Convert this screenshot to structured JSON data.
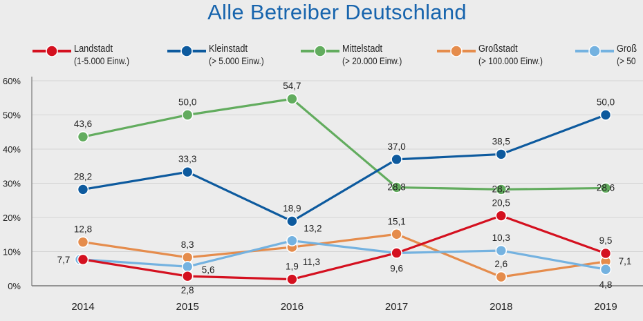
{
  "chart_data": {
    "type": "line",
    "title": "Alle Betreiber Deutschland",
    "categories": [
      "2014",
      "2015",
      "2016",
      "2017",
      "2018",
      "2019"
    ],
    "ylim": [
      0,
      60
    ],
    "yticks": [
      "0%",
      "10%",
      "20%",
      "30%",
      "40%",
      "50%",
      "60%"
    ],
    "grid": true,
    "legend_position": "top",
    "series": [
      {
        "name": "Landstadt",
        "sub": "(1-5.000 Einw.)",
        "color": "#d4101f",
        "values": [
          7.7,
          2.8,
          1.9,
          9.6,
          20.5,
          9.5
        ],
        "labels": [
          "",
          "2,8",
          "1,9",
          "",
          "20,5",
          "9,5"
        ]
      },
      {
        "name": "Kleinstadt",
        "sub": "(> 5.000 Einw.)",
        "color": "#0d5a9e",
        "values": [
          28.2,
          33.3,
          18.9,
          37.0,
          38.5,
          50.0
        ],
        "labels": [
          "28,2",
          "33,3",
          "18,9",
          "37,0",
          "38,5",
          "50,0"
        ]
      },
      {
        "name": "Mittelstadt",
        "sub": "(> 20.000 Einw.)",
        "color": "#62ac5e",
        "values": [
          43.6,
          50.0,
          54.7,
          28.8,
          28.2,
          28.6
        ],
        "labels": [
          "43,6",
          "50,0",
          "54,7",
          "28,8",
          "28,2",
          "28,6"
        ]
      },
      {
        "name": "Großstadt",
        "sub": "(> 100.000 Einw.)",
        "color": "#e58c4c",
        "values": [
          12.8,
          8.3,
          11.3,
          15.1,
          2.6,
          7.1
        ],
        "labels": [
          "12,8",
          "8,3",
          "11,3",
          "15,1",
          "2,6",
          "7,1"
        ]
      },
      {
        "name": "Groß",
        "sub": "(> 50",
        "color": "#74b2e0",
        "values": [
          7.7,
          5.6,
          13.2,
          9.6,
          10.3,
          4.8
        ],
        "labels": [
          "7,7",
          "5,6",
          "13,2",
          "9,6",
          "10,3",
          "4,8"
        ]
      }
    ]
  }
}
